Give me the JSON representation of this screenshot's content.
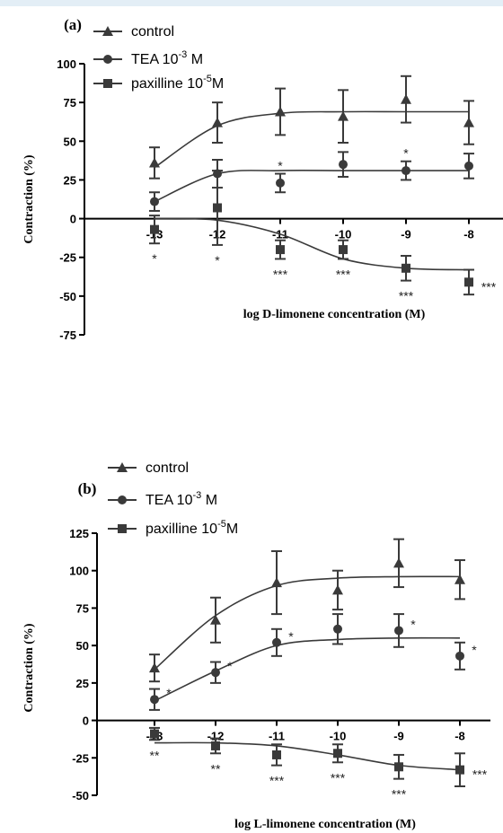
{
  "chart_data": [
    {
      "panel_label": "(a)",
      "type": "scatter",
      "xlabel": "log D-limonene concentration (M)",
      "ylabel": "Contraction (%)",
      "x_ticks": [
        -13,
        -12,
        -11,
        -10,
        -9,
        -8
      ],
      "y_ticks": [
        -75,
        -50,
        -25,
        0,
        25,
        50,
        75,
        100
      ],
      "xlim": [
        -13.3,
        -7.7
      ],
      "ylim": [
        -75,
        100
      ],
      "legend": [
        "control",
        "TEA 10^-3 M",
        "paxilline 10^-5M"
      ],
      "series": [
        {
          "name": "control",
          "marker": "triangle",
          "x": [
            -13,
            -12,
            -11,
            -10,
            -9,
            -8
          ],
          "y": [
            36,
            62,
            69,
            66,
            77,
            62
          ],
          "err": [
            10,
            13,
            15,
            17,
            15,
            14
          ],
          "fit": [
            33,
            60,
            68,
            69,
            69,
            69
          ]
        },
        {
          "name": "TEA 10^-3 M",
          "marker": "circle",
          "x": [
            -13,
            -12,
            -11,
            -10,
            -9,
            -8
          ],
          "y": [
            11,
            29,
            23,
            35,
            31,
            34
          ],
          "err": [
            6,
            9,
            6,
            8,
            6,
            8
          ],
          "fit": [
            11,
            29,
            31,
            31,
            31,
            31
          ],
          "annotations": [
            "",
            "",
            "*",
            "",
            "*",
            ""
          ]
        },
        {
          "name": "paxilline 10^-5M",
          "marker": "square",
          "x": [
            -13,
            -12,
            -11,
            -10,
            -9,
            -8
          ],
          "y": [
            -7,
            7,
            -20,
            -20,
            -32,
            -41
          ],
          "err": [
            9,
            24,
            6,
            6,
            8,
            8
          ],
          "fit": [
            0,
            -1,
            -10,
            -26,
            -32,
            -33
          ],
          "annotations": [
            "*",
            "*",
            "***",
            "***",
            "***",
            "***"
          ]
        }
      ]
    },
    {
      "panel_label": "(b)",
      "type": "scatter",
      "xlabel": "log L-limonene concentration (M)",
      "ylabel": "Contraction (%)",
      "x_ticks": [
        -13,
        -12,
        -11,
        -10,
        -9,
        -8
      ],
      "y_ticks": [
        -50,
        -25,
        0,
        25,
        50,
        75,
        100,
        125
      ],
      "xlim": [
        -13.3,
        -7.7
      ],
      "ylim": [
        -50,
        125
      ],
      "legend": [
        "control",
        "TEA 10^-3 M",
        "paxilline 10^-5M"
      ],
      "series": [
        {
          "name": "control",
          "marker": "triangle",
          "x": [
            -13,
            -12,
            -11,
            -10,
            -9,
            -8
          ],
          "y": [
            35,
            67,
            92,
            87,
            105,
            94
          ],
          "err": [
            9,
            15,
            21,
            13,
            16,
            13
          ],
          "fit": [
            34,
            70,
            90,
            95,
            96,
            96
          ]
        },
        {
          "name": "TEA 10^-3 M",
          "marker": "circle",
          "x": [
            -13,
            -12,
            -11,
            -10,
            -9,
            -8
          ],
          "y": [
            14,
            32,
            52,
            61,
            60,
            43
          ],
          "err": [
            7,
            7,
            9,
            10,
            11,
            9
          ],
          "fit": [
            13,
            33,
            50,
            54,
            55,
            55
          ],
          "annotations": [
            "*",
            "*",
            "*",
            "",
            "*",
            "*"
          ]
        },
        {
          "name": "paxilline 10^-5M",
          "marker": "square",
          "x": [
            -13,
            -12,
            -11,
            -10,
            -9,
            -8
          ],
          "y": [
            -9,
            -17,
            -23,
            -22,
            -31,
            -33
          ],
          "err": [
            4,
            5,
            7,
            6,
            8,
            11
          ],
          "fit": [
            -15,
            -15,
            -17,
            -23,
            -30,
            -33
          ],
          "annotations": [
            "**",
            "**",
            "***",
            "***",
            "***",
            "***"
          ]
        }
      ]
    }
  ]
}
